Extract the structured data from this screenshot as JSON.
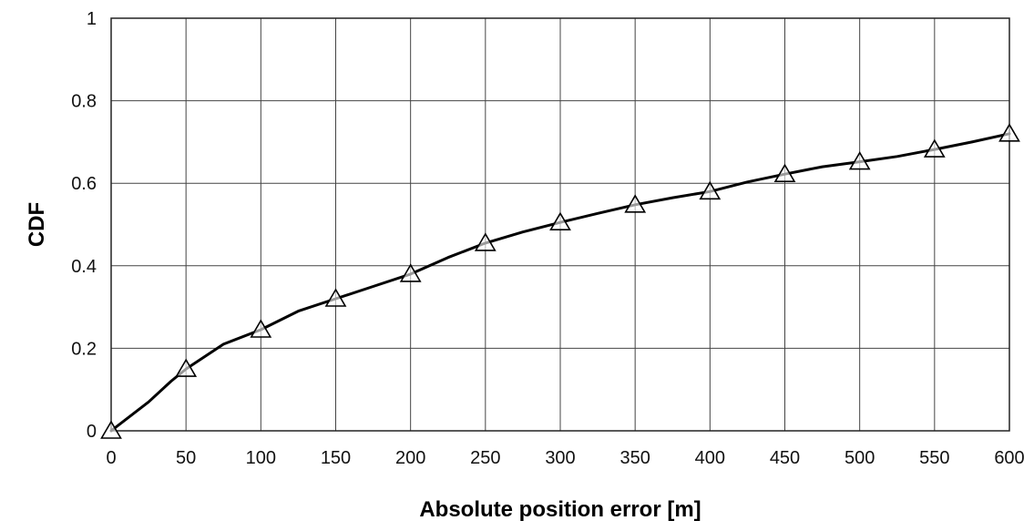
{
  "chart_data": {
    "type": "line",
    "title": "",
    "xlabel": "Absolute position error [m]",
    "ylabel": "CDF",
    "xlim": [
      0,
      600
    ],
    "ylim": [
      0,
      1
    ],
    "x_ticks": [
      0,
      50,
      100,
      150,
      200,
      250,
      300,
      350,
      400,
      450,
      500,
      550,
      600
    ],
    "y_ticks": [
      0,
      0.2,
      0.4,
      0.6,
      0.8,
      1
    ],
    "y_tick_labels": [
      "0",
      "0.2",
      "0.4",
      "0.6",
      "0.8",
      "1"
    ],
    "grid": true,
    "legend": "none",
    "series": [
      {
        "line_color": "#000000",
        "marker": "triangle",
        "curve": {
          "x": [
            0,
            25,
            40,
            50,
            75,
            100,
            125,
            150,
            175,
            200,
            225,
            250,
            275,
            300,
            325,
            350,
            375,
            400,
            425,
            450,
            475,
            500,
            525,
            550,
            575,
            600
          ],
          "y": [
            0,
            0.07,
            0.12,
            0.15,
            0.21,
            0.245,
            0.29,
            0.32,
            0.35,
            0.38,
            0.42,
            0.455,
            0.482,
            0.505,
            0.527,
            0.548,
            0.565,
            0.58,
            0.603,
            0.622,
            0.64,
            0.652,
            0.665,
            0.682,
            0.7,
            0.72
          ]
        },
        "markers": {
          "x": [
            0,
            50,
            100,
            150,
            200,
            250,
            300,
            350,
            400,
            450,
            500,
            550,
            600
          ],
          "y": [
            0,
            0.15,
            0.245,
            0.32,
            0.38,
            0.455,
            0.505,
            0.548,
            0.58,
            0.622,
            0.652,
            0.682,
            0.72
          ]
        }
      }
    ]
  }
}
